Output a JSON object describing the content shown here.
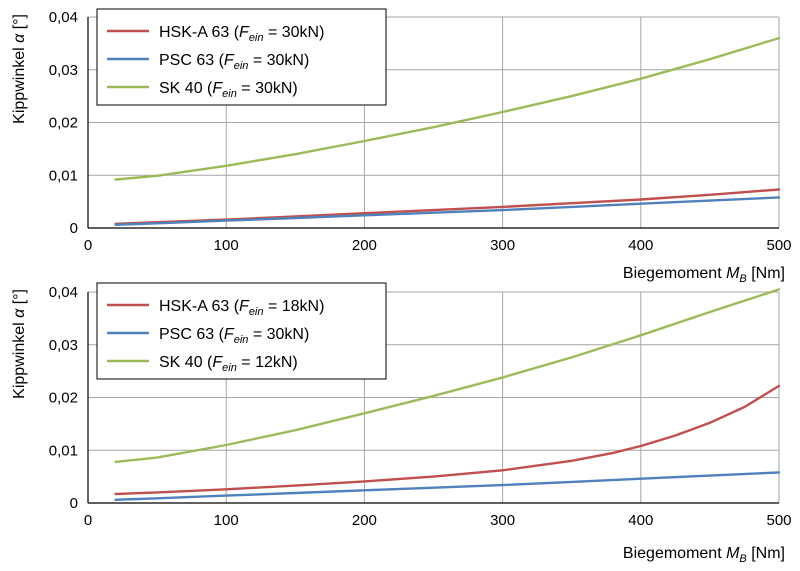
{
  "chart_data": [
    {
      "type": "line",
      "xlabel": "Biegemoment",
      "xlabel_sub": "B",
      "xlabel_sym": "M",
      "xlabel_unit": "[Nm]",
      "ylabel": "Kippwinkel",
      "ylabel_sym": "α",
      "ylabel_unit": "[°]",
      "xlim": [
        0,
        500
      ],
      "ylim": [
        0,
        0.04
      ],
      "xticks": [
        0,
        100,
        200,
        300,
        400,
        500
      ],
      "xtick_labels": [
        "0",
        "100",
        "200",
        "300",
        "400",
        "500"
      ],
      "yticks": [
        0,
        0.01,
        0.02,
        0.03,
        0.04
      ],
      "ytick_labels": [
        "0",
        "0,01",
        "0,02",
        "0,03",
        "0,04"
      ],
      "grid": true,
      "legend_position": "top-left",
      "series": [
        {
          "name_prefix": "HSK-A 63 (",
          "name_sym": "F",
          "name_sub": "ein",
          "name_suffix": " = 30kN)",
          "color": "#c0504d",
          "x": [
            20,
            50,
            100,
            150,
            200,
            250,
            300,
            350,
            400,
            450,
            500
          ],
          "y": [
            0.0008,
            0.0011,
            0.0016,
            0.0022,
            0.0028,
            0.0034,
            0.004,
            0.0047,
            0.0054,
            0.0063,
            0.0073
          ]
        },
        {
          "name_prefix": "PSC 63 (",
          "name_sym": "F",
          "name_sub": "ein",
          "name_suffix": " = 30kN)",
          "color": "#4f81bd",
          "x": [
            20,
            50,
            100,
            150,
            200,
            250,
            300,
            350,
            400,
            450,
            500
          ],
          "y": [
            0.0006,
            0.0009,
            0.0014,
            0.0019,
            0.0024,
            0.0029,
            0.0034,
            0.004,
            0.0046,
            0.0052,
            0.0058
          ]
        },
        {
          "name_prefix": "SK 40 (",
          "name_sym": "F",
          "name_sub": "ein",
          "name_suffix": " = 30kN)",
          "color": "#9bbb59",
          "x": [
            20,
            50,
            100,
            150,
            200,
            250,
            300,
            350,
            400,
            450,
            500
          ],
          "y": [
            0.0092,
            0.0099,
            0.0118,
            0.014,
            0.0165,
            0.0191,
            0.022,
            0.025,
            0.0283,
            0.032,
            0.036
          ]
        }
      ]
    },
    {
      "type": "line",
      "xlabel": "Biegemoment",
      "xlabel_sub": "B",
      "xlabel_sym": "M",
      "xlabel_unit": "[Nm]",
      "ylabel": "Kippwinkel",
      "ylabel_sym": "α",
      "ylabel_unit": "[°]",
      "xlim": [
        0,
        500
      ],
      "ylim": [
        0,
        0.04
      ],
      "xticks": [
        0,
        100,
        200,
        300,
        400,
        500
      ],
      "xtick_labels": [
        "0",
        "100",
        "200",
        "300",
        "400",
        "500"
      ],
      "yticks": [
        0,
        0.01,
        0.02,
        0.03,
        0.04
      ],
      "ytick_labels": [
        "0",
        "0,01",
        "0,02",
        "0,03",
        "0,04"
      ],
      "grid": true,
      "legend_position": "top-left",
      "series": [
        {
          "name_prefix": "HSK-A 63 (",
          "name_sym": "F",
          "name_sub": "ein",
          "name_suffix": " = 18kN)",
          "color": "#c0504d",
          "x": [
            20,
            50,
            100,
            150,
            200,
            250,
            300,
            350,
            380,
            400,
            425,
            450,
            475,
            500
          ],
          "y": [
            0.0017,
            0.002,
            0.0026,
            0.0033,
            0.0041,
            0.005,
            0.0062,
            0.008,
            0.0095,
            0.0108,
            0.0128,
            0.0152,
            0.0182,
            0.0222
          ]
        },
        {
          "name_prefix": "PSC 63 (",
          "name_sym": "F",
          "name_sub": "ein",
          "name_suffix": " = 30kN)",
          "color": "#4f81bd",
          "x": [
            20,
            50,
            100,
            150,
            200,
            250,
            300,
            350,
            400,
            450,
            500
          ],
          "y": [
            0.0006,
            0.0009,
            0.0014,
            0.0019,
            0.0024,
            0.0029,
            0.0034,
            0.004,
            0.0046,
            0.0052,
            0.0058
          ]
        },
        {
          "name_prefix": "SK 40 (",
          "name_sym": "F",
          "name_sub": "ein",
          "name_suffix": " = 12kN)",
          "color": "#9bbb59",
          "x": [
            20,
            50,
            100,
            150,
            200,
            250,
            300,
            350,
            400,
            450,
            500
          ],
          "y": [
            0.0078,
            0.0086,
            0.011,
            0.0138,
            0.017,
            0.0203,
            0.0238,
            0.0276,
            0.0318,
            0.0362,
            0.0405
          ]
        }
      ]
    }
  ]
}
